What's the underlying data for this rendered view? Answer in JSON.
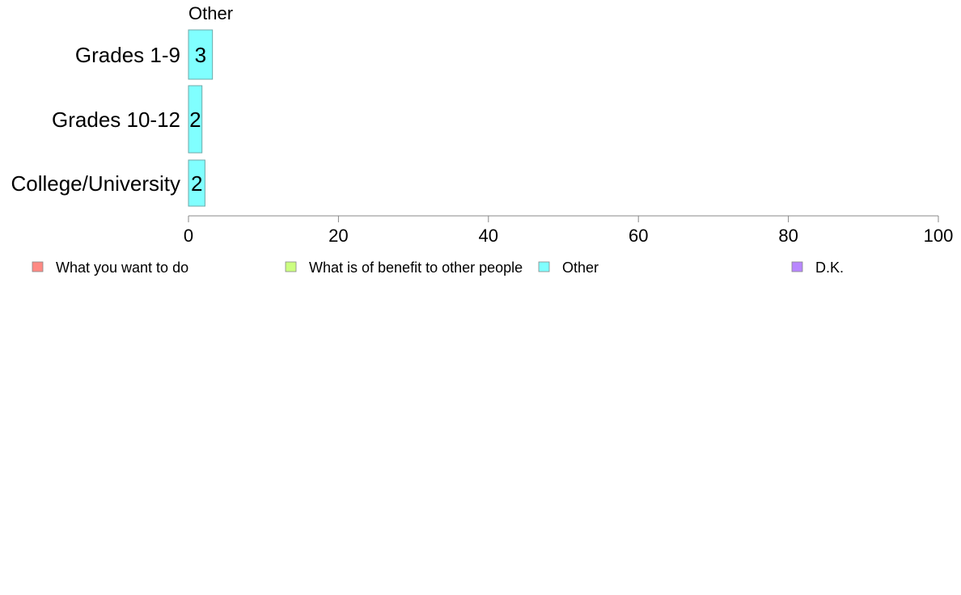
{
  "chart_data": {
    "type": "bar",
    "orientation": "horizontal",
    "panel_title": "Other",
    "categories": [
      "Grades 1-9",
      "Grades 10-12",
      "College/University"
    ],
    "series": [
      {
        "name": "Other",
        "color": "#80FFFF",
        "values": [
          3.2,
          1.8,
          2.2
        ],
        "labels": [
          "3",
          "2",
          "2"
        ]
      }
    ],
    "xlim": [
      0,
      100
    ],
    "xticks": [
      0,
      20,
      40,
      60,
      80,
      100
    ],
    "grid": false,
    "legend_position": "bottom",
    "legend": [
      {
        "label": "What you want to do",
        "color": "#FF8A84"
      },
      {
        "label": "What is of benefit to other people",
        "color": "#CCFF80"
      },
      {
        "label": "Other",
        "color": "#80FFFF"
      },
      {
        "label": "D.K.",
        "color": "#B887FF"
      }
    ]
  }
}
